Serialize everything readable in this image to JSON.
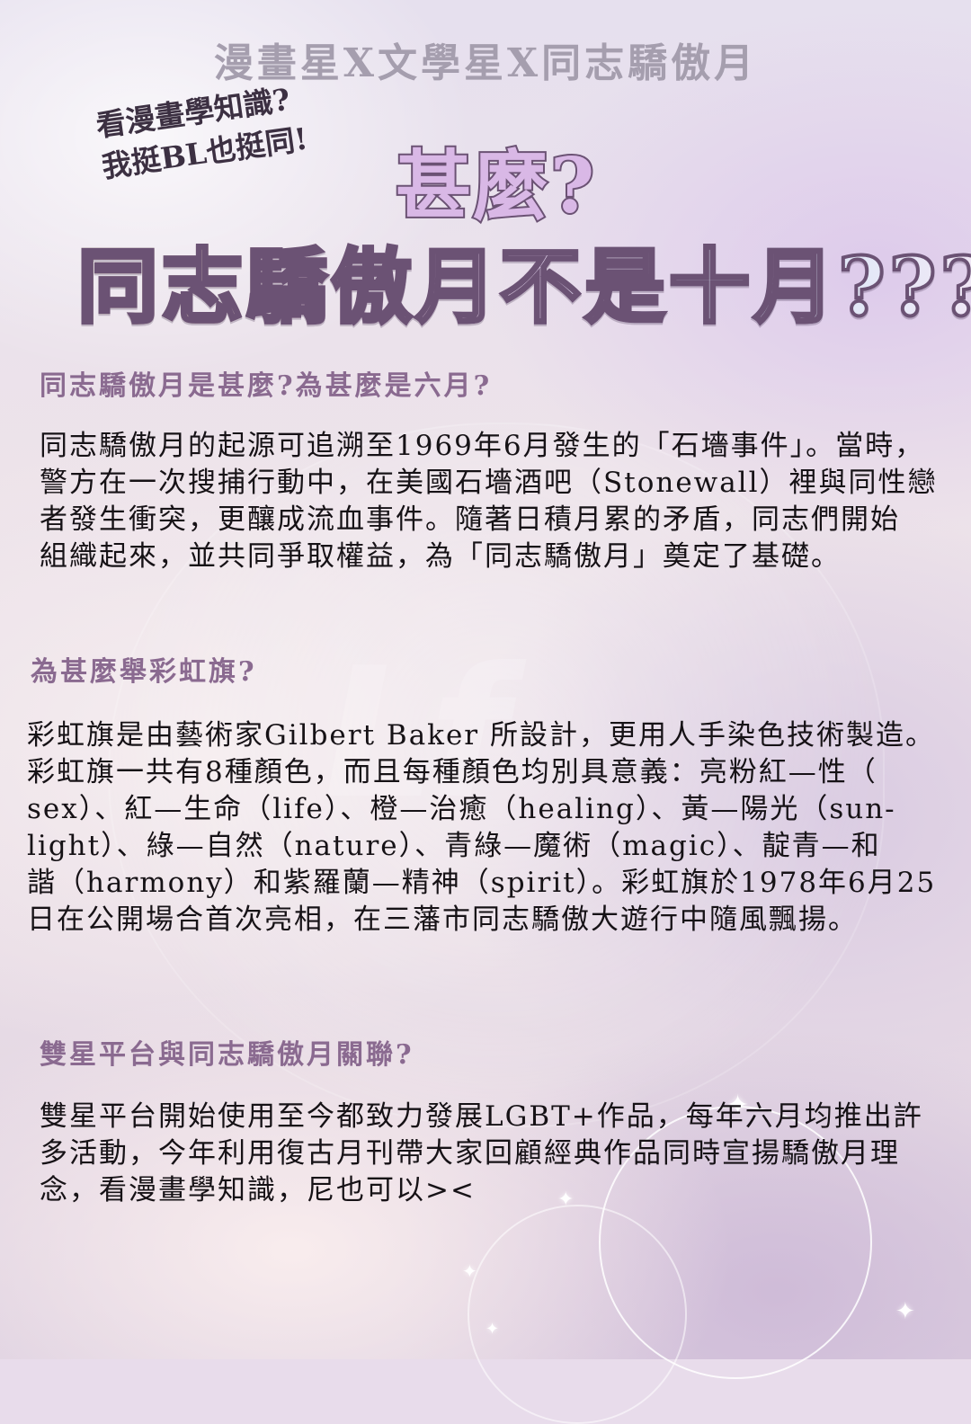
{
  "header": {
    "line": "漫畫星X文學星X同志驕傲月"
  },
  "side_note": {
    "line1": "看漫畫學知識?",
    "line2": "我挺BL也挺同!"
  },
  "headline": {
    "question": "甚麼?",
    "title": "同志驕傲月不是十月???"
  },
  "sections": [
    {
      "heading": "同志驕傲月是甚麼?為甚麼是六月?",
      "body": "同志驕傲月的起源可追溯至1969年6月發生的「石墻事件」。當時，\n警方在一次搜捕行動中，在美國石墻酒吧（Stonewall）裡與同性戀\n者發生衝突，更釀成流血事件。隨著日積月累的矛盾，同志們開始\n組織起來，並共同爭取權益，為「同志驕傲月」奠定了基礎。"
    },
    {
      "heading": "為甚麼舉彩虹旗?",
      "body": "彩虹旗是由藝術家Gilbert Baker 所設計，更用人手染色技術製造。\n彩虹旗一共有8種顏色，而且每種顏色均別具意義：亮粉紅—性（\nsex）、紅—生命（life）、橙—治癒（healing）、黃—陽光（sun-\nlight）、綠—自然（nature）、青綠—魔術（magic）、靛青—和\n諧（harmony）和紫羅蘭—精神（spirit）。彩虹旗於1978年6月25\n日在公開場合首次亮相，在三藩市同志驕傲大遊行中隨風飄揚。"
    },
    {
      "heading": "雙星平台與同志驕傲月關聯?",
      "body": "雙星平台開始使用至今都致力發展LGBT+作品，每年六月均推出許\n多活動，今年利用復古月刊帶大家回顧經典作品同時宣揚驕傲月理\n念，看漫畫學知識，尼也可以><"
    }
  ],
  "colors": {
    "heading": "#8a6a90",
    "body": "#161216",
    "header": "#a59eae",
    "title_outline": "#6b5274"
  }
}
